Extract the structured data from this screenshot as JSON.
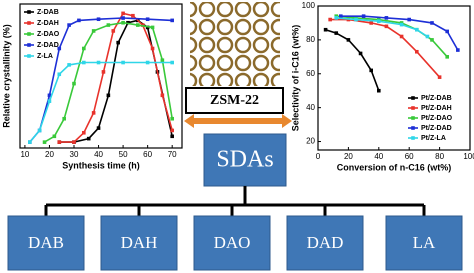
{
  "chart_data": [
    {
      "type": "line",
      "xlabel": "Synthesis time (h)",
      "ylabel": "Relative crystallinity (%)",
      "xlim": [
        8,
        74
      ],
      "xticks": [
        10,
        20,
        30,
        40,
        50,
        60,
        70
      ],
      "ylim": [
        -5,
        118
      ],
      "legend": "top-left",
      "series": [
        {
          "name": "Z-DAB",
          "color": "#000000",
          "x": [
            24,
            30,
            36,
            40,
            44,
            48,
            52,
            56,
            60,
            64,
            70
          ],
          "values": [
            0,
            0,
            3,
            12,
            40,
            85,
            102,
            104,
            98,
            60,
            5
          ]
        },
        {
          "name": "Z-DAH",
          "color": "#e8322b",
          "x": [
            24,
            30,
            34,
            38,
            42,
            46,
            50,
            54,
            58,
            62,
            66,
            70
          ],
          "values": [
            0,
            0,
            8,
            25,
            60,
            95,
            110,
            108,
            100,
            80,
            40,
            10
          ]
        },
        {
          "name": "Z-DAO",
          "color": "#39c93a",
          "x": [
            18,
            22,
            26,
            30,
            34,
            38,
            44,
            50,
            56,
            62,
            66,
            70
          ],
          "values": [
            0,
            5,
            20,
            50,
            80,
            95,
            100,
            102,
            100,
            98,
            70,
            20
          ]
        },
        {
          "name": "Z-DAD",
          "color": "#1d2fd6",
          "x": [
            12,
            16,
            20,
            24,
            28,
            32,
            40,
            50,
            60,
            70
          ],
          "values": [
            0,
            10,
            40,
            80,
            100,
            104,
            105,
            106,
            105,
            104
          ]
        },
        {
          "name": "Z-LA",
          "color": "#2fd6e8",
          "x": [
            12,
            16,
            20,
            24,
            28,
            34,
            40,
            50,
            60,
            70
          ],
          "values": [
            0,
            10,
            35,
            58,
            66,
            68,
            68,
            68,
            68,
            68
          ]
        }
      ]
    },
    {
      "type": "line",
      "xlabel": "Conversion of n-C16 (wt%)",
      "ylabel": "Selectivity of i-C16 (wt%)",
      "xlim": [
        0,
        100
      ],
      "xticks": [
        0,
        20,
        40,
        60,
        80,
        100
      ],
      "ylim": [
        15,
        100
      ],
      "yticks": [
        20,
        40,
        60,
        80,
        100
      ],
      "legend": "bottom-right",
      "series": [
        {
          "name": "Pt/Z-DAB",
          "color": "#000000",
          "x": [
            5,
            12,
            20,
            28,
            35,
            40
          ],
          "values": [
            86,
            84,
            80,
            72,
            62,
            50
          ]
        },
        {
          "name": "Pt/Z-DAH",
          "color": "#e8322b",
          "x": [
            8,
            20,
            35,
            45,
            55,
            65,
            80
          ],
          "values": [
            92,
            92,
            90,
            88,
            82,
            73,
            58
          ]
        },
        {
          "name": "Pt/Z-DAO",
          "color": "#39c93a",
          "x": [
            12,
            25,
            40,
            55,
            65,
            75,
            85
          ],
          "values": [
            94,
            93,
            92,
            90,
            86,
            80,
            70
          ]
        },
        {
          "name": "Pt/Z-DAD",
          "color": "#1d2fd6",
          "x": [
            15,
            30,
            45,
            60,
            75,
            85,
            92
          ],
          "values": [
            94,
            94,
            93,
            92,
            90,
            85,
            74
          ]
        },
        {
          "name": "Pt/Z-LA",
          "color": "#2fd6e8",
          "x": [
            12,
            25,
            40,
            55,
            65,
            72
          ],
          "values": [
            93,
            92,
            91,
            89,
            86,
            82
          ]
        }
      ]
    }
  ],
  "diagram": {
    "framework": "ZSM-22",
    "sda": "SDAs",
    "templates": [
      "DAB",
      "DAH",
      "DAO",
      "DAD",
      "LA"
    ]
  }
}
